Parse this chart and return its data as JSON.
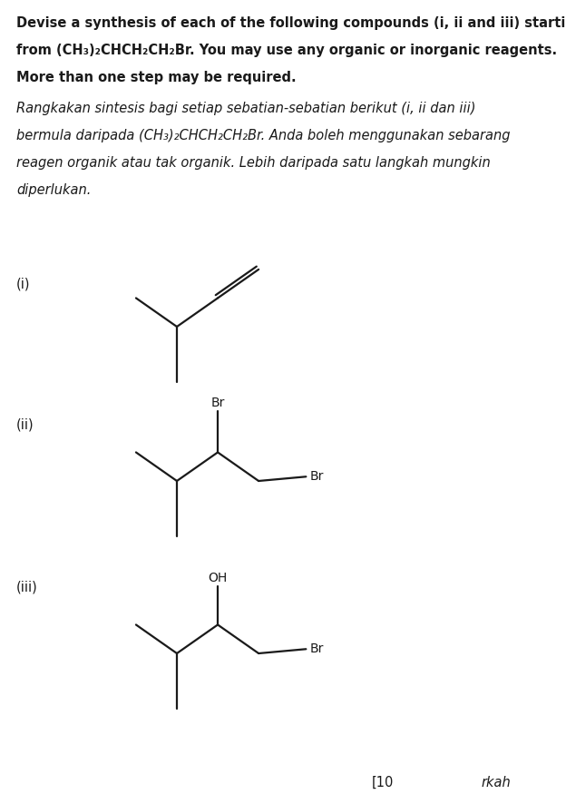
{
  "bg_color": "#ffffff",
  "text_color": "#1a1a1a",
  "line_color": "#1a1a1a",
  "bold_lines": [
    "Devise a synthesis of each of the following compounds (i, ii and iii) starting",
    "from (CH₃)₂CHCH₂CH₂Br. You may use any organic or inorganic reagents.",
    "More than one step may be required."
  ],
  "italic_lines": [
    "Rangkakan sintesis bagi setiap sebatian-sebatian berikut (i, ii dan iii)",
    "bermula daripada (CH₃)₂CHCH₂CH₂Br. Anda boleh menggunakan sebarang",
    "reagen organik atau tak organik. Lebih daripada satu langkah mungkin",
    "diperlukan."
  ],
  "label_i": "(i)",
  "label_ii": "(ii)",
  "label_iii": "(iii)",
  "footer_left": "[10",
  "footer_right": "rkah",
  "lw": 1.6,
  "fontsize_text": 10.5,
  "fontsize_label": 10.5,
  "fontsize_chem": 10.0
}
